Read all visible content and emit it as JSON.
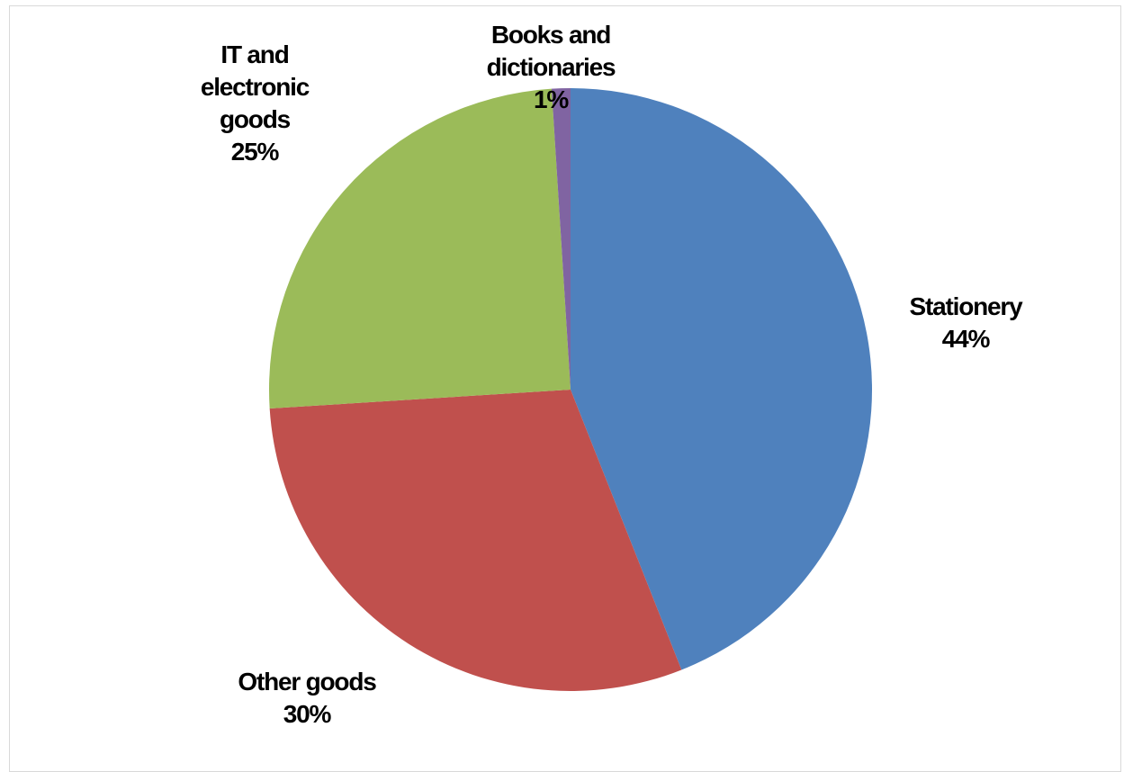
{
  "chart_data": {
    "type": "pie",
    "title": "",
    "start_angle_deg": 0,
    "direction": "clockwise",
    "slices": [
      {
        "name": "Stationery",
        "value": 44,
        "label_lines": [
          "Stationery"
        ],
        "pct_label": "44%",
        "color": "#4f81bd"
      },
      {
        "name": "Other goods",
        "value": 30,
        "label_lines": [
          "Other goods"
        ],
        "pct_label": "30%",
        "color": "#c0504d"
      },
      {
        "name": "IT and electronic goods",
        "value": 25,
        "label_lines": [
          "IT and",
          "electronic",
          "goods"
        ],
        "pct_label": "25%",
        "color": "#9bbb59"
      },
      {
        "name": "Books and dictionaries",
        "value": 1,
        "label_lines": [
          "Books and",
          "dictionaries"
        ],
        "pct_label": "1%",
        "color": "#8064a2"
      }
    ],
    "legend": "none",
    "data_labels": "outside"
  }
}
